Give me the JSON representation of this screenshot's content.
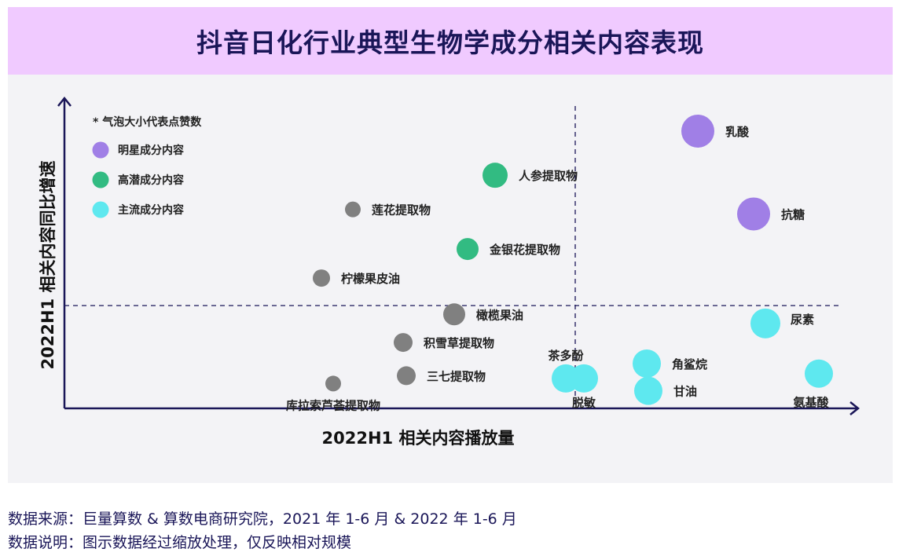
{
  "title": "抖音日化行业典型生物学成分相关内容表现",
  "footnotes": {
    "source": "数据来源：巨量算数 & 算数电商研究院，2021 年 1-6 月 & 2022 年 1-6 月",
    "note": "数据说明：图示数据经过缩放处理，仅反映相对规模"
  },
  "chart_data": {
    "type": "scatter",
    "xlabel": "2022H1 相关内容播放量",
    "ylabel": "2022H1 相关内容同比增速",
    "legend": {
      "note": "* 气泡大小代表点赞数",
      "entries": [
        {
          "name": "明星成分内容",
          "color": "#a07fe6"
        },
        {
          "name": "高潜成分内容",
          "color": "#32bb82"
        },
        {
          "name": "主流成分内容",
          "color": "#5ee8ef"
        }
      ],
      "position": "top-left"
    },
    "xlim": [
      0,
      100
    ],
    "ylim": [
      0,
      100
    ],
    "x_divider": 65,
    "y_divider": 34,
    "points": [
      {
        "label": "乳酸",
        "x": 80.6,
        "y": 91.7,
        "size": 21,
        "group": "明星成分内容",
        "color": "#a07fe6"
      },
      {
        "label": "抗糖",
        "x": 87.7,
        "y": 64.3,
        "size": 21,
        "group": "明星成分内容",
        "color": "#a07fe6"
      },
      {
        "label": "人参提取物",
        "x": 54.8,
        "y": 77.1,
        "size": 16,
        "group": "高潜成分内容",
        "color": "#32bb82"
      },
      {
        "label": "金银花提取物",
        "x": 51.3,
        "y": 52.7,
        "size": 14,
        "group": "高潜成分内容",
        "color": "#32bb82"
      },
      {
        "label": "莲花提取物",
        "x": 36.7,
        "y": 65.8,
        "size": 10,
        "group": "其他",
        "color": "#808080"
      },
      {
        "label": "柠檬果皮油",
        "x": 32.7,
        "y": 43.1,
        "size": 11,
        "group": "其他",
        "color": "#808080"
      },
      {
        "label": "橄榄果油",
        "x": 49.6,
        "y": 31.1,
        "size": 14,
        "group": "其他",
        "color": "#808080"
      },
      {
        "label": "积雪草提取物",
        "x": 43.1,
        "y": 21.8,
        "size": 12,
        "group": "其他",
        "color": "#808080"
      },
      {
        "label": "三七提取物",
        "x": 43.5,
        "y": 10.8,
        "size": 12,
        "group": "其他",
        "color": "#808080"
      },
      {
        "label": "库拉索芦荟提取物",
        "x": 34.2,
        "y": 8.2,
        "size": 10,
        "group": "其他",
        "color": "#808080"
      },
      {
        "label": "尿素",
        "x": 89.2,
        "y": 28.1,
        "size": 19,
        "group": "主流成分内容",
        "color": "#5ee8ef"
      },
      {
        "label": "角鲨烷",
        "x": 74.1,
        "y": 14.8,
        "size": 18,
        "group": "主流成分内容",
        "color": "#5ee8ef"
      },
      {
        "label": "甘油",
        "x": 74.3,
        "y": 5.8,
        "size": 18,
        "group": "主流成分内容",
        "color": "#5ee8ef"
      },
      {
        "label": "氨基酸",
        "x": 96.0,
        "y": 11.5,
        "size": 18,
        "group": "主流成分内容",
        "color": "#5ee8ef"
      },
      {
        "label": "茶多酚",
        "x": 63.8,
        "y": 9.9,
        "size": 18,
        "group": "主流成分内容",
        "color": "#5ee8ef"
      },
      {
        "label": "脱敏",
        "x": 66.1,
        "y": 9.9,
        "size": 18,
        "group": "主流成分内容",
        "color": "#5ee8ef"
      }
    ]
  }
}
